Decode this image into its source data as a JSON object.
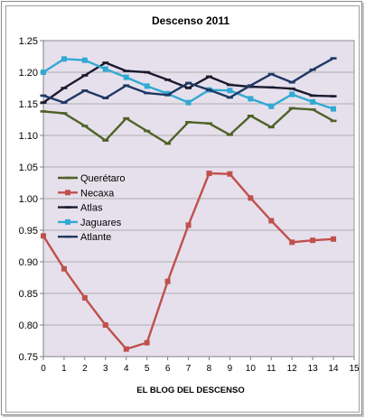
{
  "chart_data": {
    "type": "line",
    "title": "Descenso 2011",
    "xlabel": "EL BLOG DEL DESCENSO",
    "ylabel": "",
    "x": [
      0,
      1,
      2,
      3,
      4,
      5,
      6,
      7,
      8,
      9,
      10,
      11,
      12,
      13,
      14
    ],
    "xticks": [
      "0",
      "1",
      "2",
      "3",
      "4",
      "5",
      "6",
      "7",
      "8",
      "9",
      "10",
      "11",
      "12",
      "13",
      "14",
      "15"
    ],
    "xlim": [
      0,
      15
    ],
    "ylim": [
      0.75,
      1.25
    ],
    "yticks": [
      "0.75",
      "0.80",
      "0.85",
      "0.90",
      "0.95",
      "1.00",
      "1.05",
      "1.10",
      "1.15",
      "1.20",
      "1.25"
    ],
    "grid": "horizontal",
    "plot_background": "#E6E0EC",
    "legend_position": "inside-left",
    "series": [
      {
        "name": "Querétaro",
        "color": "#4F6228",
        "marker": "dash",
        "values": [
          1.138,
          1.135,
          1.115,
          1.092,
          1.127,
          1.107,
          1.087,
          1.121,
          1.119,
          1.101,
          1.131,
          1.113,
          1.143,
          1.141,
          1.123
        ]
      },
      {
        "name": "Necaxa",
        "color": "#C0504D",
        "marker": "square",
        "values": [
          0.941,
          0.889,
          0.843,
          0.8,
          0.762,
          0.772,
          0.869,
          0.958,
          1.04,
          1.039,
          1.001,
          0.965,
          0.931,
          0.934,
          0.936
        ]
      },
      {
        "name": "Atlas",
        "color": "#1a1a2e",
        "marker": "dash",
        "values": [
          1.152,
          1.175,
          1.195,
          1.215,
          1.202,
          1.2,
          1.188,
          1.175,
          1.193,
          1.18,
          1.177,
          1.176,
          1.174,
          1.163,
          1.162
        ]
      },
      {
        "name": "Jaguares",
        "color": "#31A9D3",
        "marker": "square",
        "values": [
          1.2,
          1.221,
          1.219,
          1.205,
          1.192,
          1.178,
          1.166,
          1.152,
          1.172,
          1.171,
          1.158,
          1.146,
          1.165,
          1.153,
          1.142
        ]
      },
      {
        "name": "Atlante",
        "color": "#1F3864",
        "marker": "dash",
        "values": [
          1.163,
          1.152,
          1.171,
          1.159,
          1.179,
          1.167,
          1.164,
          1.183,
          1.172,
          1.16,
          1.179,
          1.197,
          1.184,
          1.204,
          1.222
        ]
      }
    ]
  }
}
